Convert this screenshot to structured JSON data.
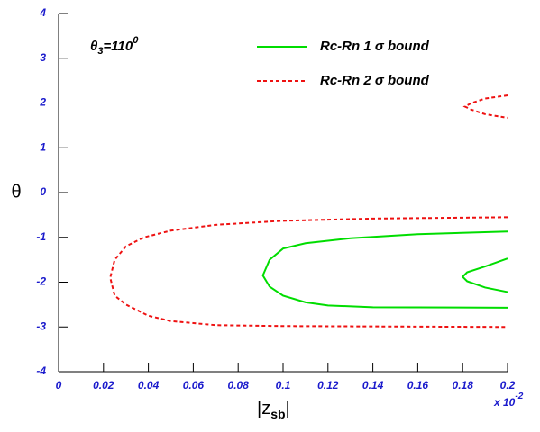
{
  "chart_data": {
    "type": "line",
    "annotation": {
      "symbol": "θ",
      "sub": "3",
      "main": "=110",
      "sup": "0"
    },
    "ylabel": "θ",
    "xlabel": {
      "main": "|z",
      "sub": "sb",
      "end": "|"
    },
    "x_exponent": {
      "base": "x 10",
      "power": "-2"
    },
    "xlim": [
      0,
      0.2
    ],
    "xticks": [
      0,
      0.02,
      0.04,
      0.06,
      0.08,
      0.1,
      0.12,
      0.14,
      0.16,
      0.18,
      0.2
    ],
    "ylim": [
      -4,
      4
    ],
    "yticks": [
      -4,
      -3,
      -2,
      -1,
      0,
      1,
      2,
      3,
      4
    ],
    "series": [
      {
        "name": "Rc-Rn 1 σ bound",
        "color": "#00dd00",
        "dashed": false,
        "x": [
          0.2,
          0.16,
          0.13,
          0.11,
          0.1,
          0.094,
          0.091,
          0.094,
          0.1,
          0.11,
          0.12,
          0.14,
          0.2,
          null,
          0.2,
          0.19,
          0.182,
          0.18,
          0.182,
          0.19,
          0.2
        ],
        "values": [
          -0.87,
          -0.93,
          -1.02,
          -1.13,
          -1.25,
          -1.5,
          -1.85,
          -2.1,
          -2.3,
          -2.45,
          -2.52,
          -2.56,
          -2.57,
          null,
          -1.47,
          -1.65,
          -1.78,
          -1.88,
          -1.98,
          -2.12,
          -2.22
        ]
      },
      {
        "name": "Rc-Rn 2 σ bound",
        "color": "#ee1111",
        "dashed": true,
        "x": [
          0.2,
          0.14,
          0.1,
          0.07,
          0.05,
          0.038,
          0.03,
          0.025,
          0.023,
          0.025,
          0.03,
          0.04,
          0.05,
          0.07,
          0.1,
          0.2,
          null,
          0.2,
          0.19,
          0.184,
          0.181,
          0.184,
          0.19,
          0.2
        ],
        "values": [
          -0.55,
          -0.58,
          -0.63,
          -0.72,
          -0.85,
          -1.0,
          -1.2,
          -1.5,
          -1.9,
          -2.3,
          -2.5,
          -2.75,
          -2.87,
          -2.96,
          -2.98,
          -3.0,
          null,
          2.17,
          2.1,
          2.0,
          1.92,
          1.85,
          1.75,
          1.67
        ]
      }
    ],
    "legend": "upper right"
  }
}
